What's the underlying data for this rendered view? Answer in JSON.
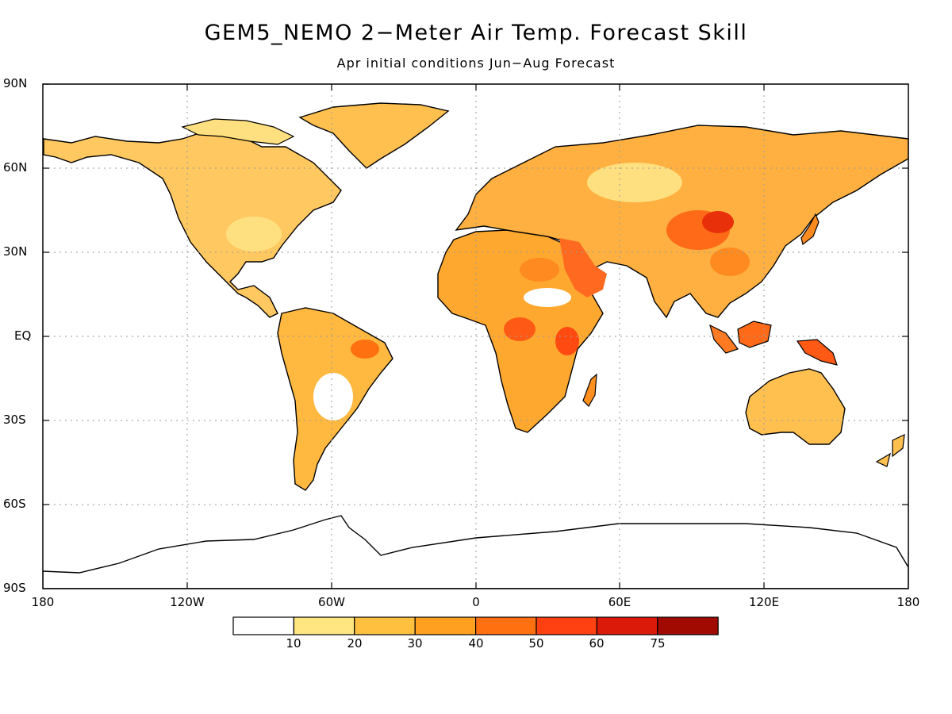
{
  "title": "GEM5_NEMO 2−Meter Air Temp. Forecast Skill",
  "subtitle": "Apr initial conditions  Jun−Aug Forecast",
  "axes": {
    "lat_labels": [
      "90N",
      "60N",
      "30N",
      "EQ",
      "30S",
      "60S",
      "90S"
    ],
    "lon_labels": [
      "180",
      "120W",
      "60W",
      "0",
      "60E",
      "120E",
      "180"
    ]
  },
  "colorbar": {
    "labels": [
      "10",
      "20",
      "30",
      "40",
      "50",
      "60",
      "75"
    ],
    "colors": [
      "#ffffff",
      "#ffe680",
      "#ffc040",
      "#ffa020",
      "#ff7010",
      "#ff4010",
      "#dc1a0a",
      "#a00a00"
    ]
  },
  "map": {
    "projection": "equirectangular",
    "lon_range": [
      -180,
      180
    ],
    "lat_range": [
      -90,
      90
    ],
    "grid": "dotted",
    "ocean_color": "#ffffff",
    "coastline_color": "#000000"
  }
}
